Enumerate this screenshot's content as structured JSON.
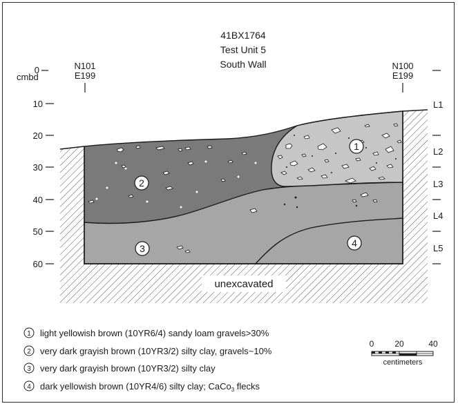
{
  "header": {
    "site": "41BX1764",
    "unit": "Test Unit 5",
    "wall": "South Wall"
  },
  "datum_left": {
    "north": "N101",
    "east": "E199"
  },
  "datum_right": {
    "north": "N100",
    "east": "E199"
  },
  "depth_axis": {
    "unit_label": "cmbd",
    "ticks": [
      "0",
      "10",
      "20",
      "30",
      "40",
      "50",
      "60"
    ]
  },
  "levels": [
    "L1",
    "L2",
    "L3",
    "L4",
    "L5"
  ],
  "strata": {
    "s1": "1",
    "s2": "2",
    "s3": "3",
    "s4": "4"
  },
  "unexcavated_label": "unexcavated",
  "legend": {
    "items": [
      {
        "num": "1",
        "text": "light yellowish brown (10YR6/4) sandy loam gravels>30%"
      },
      {
        "num": "2",
        "text": "very dark grayish brown (10YR3/2) silty clay, gravels~10%"
      },
      {
        "num": "3",
        "text": "very dark grayish brown (10YR3/2) silty clay"
      },
      {
        "num": "4",
        "text": "dark yellowish brown (10YR4/6) silty clay; CaCo",
        "sub": "3",
        "tail": " flecks"
      }
    ]
  },
  "scale_bar": {
    "ticks": [
      "0",
      "20",
      "40"
    ],
    "unit": "centimeters"
  },
  "colors": {
    "stratum1": "#c6c6c6",
    "stratum2": "#7a7a7a",
    "stratum3": "#a6a6a6",
    "stratum4": "#a6a6a6",
    "hatch": "#555555",
    "gravel": "#ffffff"
  }
}
